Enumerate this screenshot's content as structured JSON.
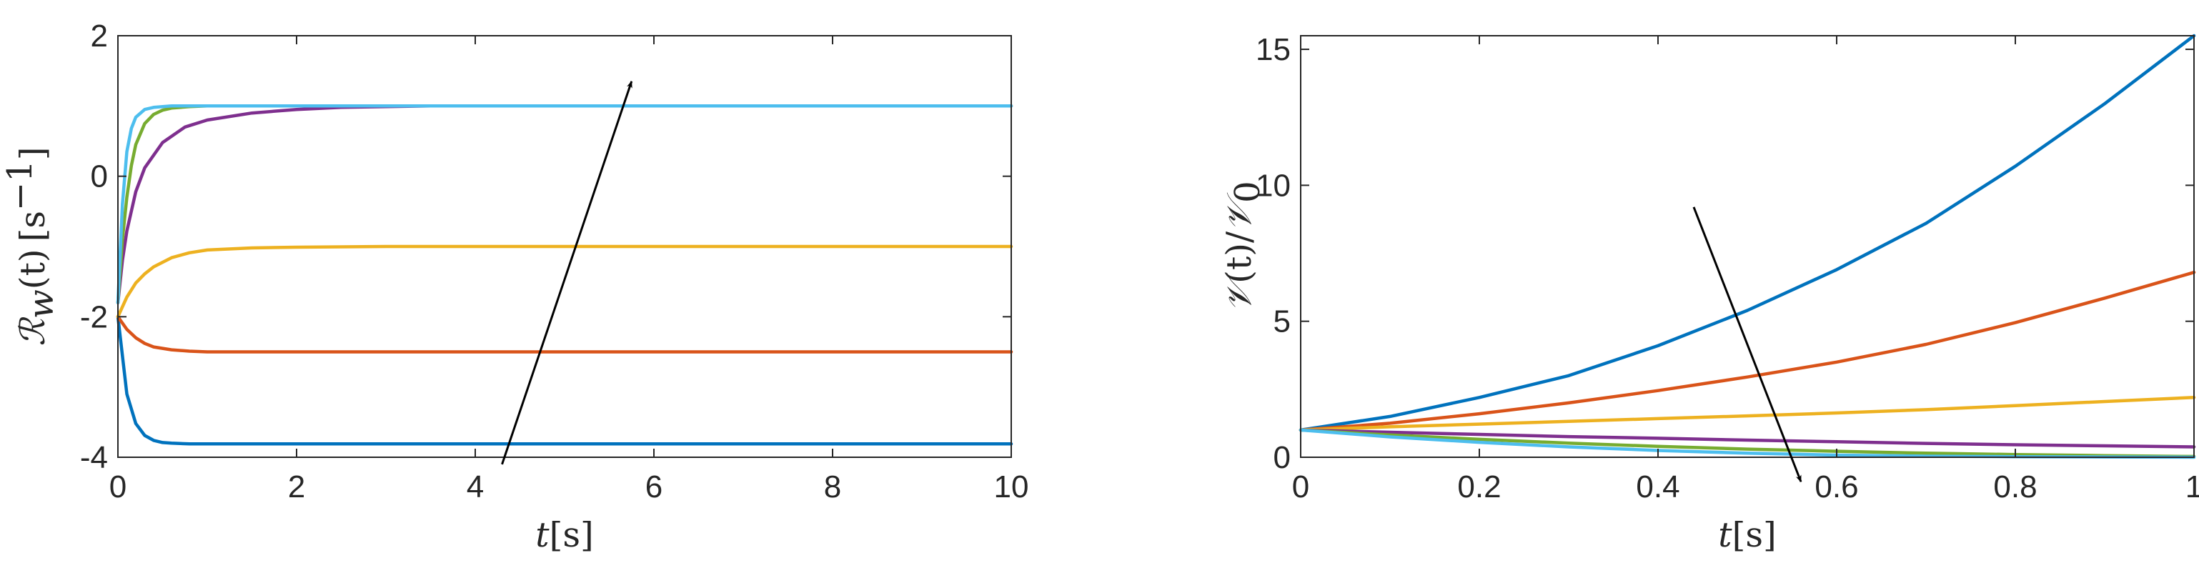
{
  "chart_data": [
    {
      "type": "line",
      "xlabel": {
        "var": "t",
        "unit": "[s]"
      },
      "ylabel": {
        "var": "ℛ",
        "sub": "w",
        "arg": "(t)",
        "unit": "[s",
        "sup": "−1",
        "close": "]"
      },
      "xlim": [
        0,
        10
      ],
      "ylim": [
        -4,
        2
      ],
      "xticks": [
        "0",
        "2",
        "4",
        "6",
        "8",
        "10"
      ],
      "yticks": [
        "-4",
        "-2",
        "0",
        "2"
      ],
      "grid": false,
      "colors": [
        "#0072BD",
        "#D95319",
        "#EDB120",
        "#7E2F8E",
        "#77AC30",
        "#4DBEEE"
      ],
      "series": [
        {
          "x": [
            0,
            0.1,
            0.2,
            0.3,
            0.4,
            0.5,
            0.6,
            0.8,
            1,
            1.5,
            2,
            4,
            10
          ],
          "y": [
            -2,
            -3.1,
            -3.52,
            -3.69,
            -3.76,
            -3.79,
            -3.8,
            -3.81,
            -3.81,
            -3.81,
            -3.81,
            -3.81,
            -3.81
          ]
        },
        {
          "x": [
            0,
            0.1,
            0.2,
            0.3,
            0.4,
            0.6,
            0.8,
            1,
            1.5,
            2,
            4,
            10
          ],
          "y": [
            -2,
            -2.18,
            -2.3,
            -2.38,
            -2.43,
            -2.47,
            -2.49,
            -2.5,
            -2.5,
            -2.5,
            -2.5,
            -2.5
          ]
        },
        {
          "x": [
            0,
            0.1,
            0.2,
            0.3,
            0.4,
            0.6,
            0.8,
            1,
            1.5,
            2,
            3,
            4,
            10
          ],
          "y": [
            -2,
            -1.72,
            -1.52,
            -1.39,
            -1.29,
            -1.16,
            -1.09,
            -1.05,
            -1.02,
            -1.01,
            -1.0,
            -1.0,
            -1.0
          ]
        },
        {
          "x": [
            0,
            0.05,
            0.1,
            0.2,
            0.3,
            0.5,
            0.75,
            1,
            1.5,
            2,
            2.5,
            3,
            3.5,
            10
          ],
          "y": [
            -1.8,
            -1.2,
            -0.78,
            -0.22,
            0.12,
            0.48,
            0.7,
            0.8,
            0.9,
            0.95,
            0.98,
            0.99,
            1.0,
            1.0
          ]
        },
        {
          "x": [
            0,
            0.05,
            0.1,
            0.15,
            0.2,
            0.3,
            0.4,
            0.5,
            0.6,
            0.8,
            1,
            2,
            10
          ],
          "y": [
            -1.8,
            -0.9,
            -0.3,
            0.15,
            0.45,
            0.75,
            0.88,
            0.94,
            0.97,
            0.99,
            1.0,
            1.0,
            1.0
          ]
        },
        {
          "x": [
            0,
            0.05,
            0.1,
            0.15,
            0.2,
            0.3,
            0.4,
            0.5,
            0.6,
            1,
            10
          ],
          "y": [
            -1.8,
            -0.4,
            0.35,
            0.68,
            0.84,
            0.95,
            0.98,
            0.99,
            1.0,
            1.0,
            1.0
          ]
        }
      ],
      "arrow": {
        "from": [
          4.3,
          -4.1
        ],
        "to": [
          5.75,
          1.35
        ]
      }
    },
    {
      "type": "line",
      "xlabel": {
        "var": "t",
        "unit": "[s]"
      },
      "ylabel": {
        "var": "𝒱",
        "arg": "(t)/",
        "var2": "𝒱",
        "sub": "0"
      },
      "xlim": [
        0,
        1
      ],
      "ylim": [
        0,
        15.5
      ],
      "xticks": [
        "0",
        "0.2",
        "0.4",
        "0.6",
        "0.8",
        "1"
      ],
      "yticks": [
        "0",
        "5",
        "10",
        "15"
      ],
      "grid": false,
      "colors": [
        "#0072BD",
        "#D95319",
        "#EDB120",
        "#7E2F8E",
        "#77AC30",
        "#4DBEEE"
      ],
      "series": [
        {
          "x": [
            0,
            0.1,
            0.2,
            0.3,
            0.4,
            0.5,
            0.6,
            0.7,
            0.8,
            0.9,
            1
          ],
          "y": [
            1,
            1.5,
            2.2,
            3.0,
            4.1,
            5.4,
            6.9,
            8.6,
            10.7,
            13.0,
            15.5
          ]
        },
        {
          "x": [
            0,
            0.1,
            0.2,
            0.3,
            0.4,
            0.5,
            0.6,
            0.7,
            0.8,
            0.9,
            1
          ],
          "y": [
            1,
            1.25,
            1.6,
            2.0,
            2.45,
            2.95,
            3.5,
            4.15,
            4.95,
            5.85,
            6.8
          ]
        },
        {
          "x": [
            0,
            0.1,
            0.2,
            0.3,
            0.4,
            0.5,
            0.6,
            0.7,
            0.8,
            0.9,
            1
          ],
          "y": [
            1,
            1.12,
            1.22,
            1.32,
            1.42,
            1.52,
            1.63,
            1.75,
            1.9,
            2.05,
            2.2
          ]
        },
        {
          "x": [
            0,
            0.1,
            0.2,
            0.3,
            0.4,
            0.5,
            0.6,
            0.7,
            0.8,
            0.9,
            1
          ],
          "y": [
            1,
            0.92,
            0.84,
            0.76,
            0.7,
            0.63,
            0.57,
            0.51,
            0.46,
            0.42,
            0.38
          ]
        },
        {
          "x": [
            0,
            0.1,
            0.2,
            0.3,
            0.4,
            0.5,
            0.6,
            0.7,
            0.8,
            0.9,
            1
          ],
          "y": [
            1,
            0.82,
            0.66,
            0.52,
            0.4,
            0.3,
            0.22,
            0.15,
            0.1,
            0.06,
            0.03
          ]
        },
        {
          "x": [
            0,
            0.1,
            0.2,
            0.3,
            0.4,
            0.5,
            0.6,
            0.7,
            0.8,
            0.9,
            1
          ],
          "y": [
            1,
            0.75,
            0.55,
            0.38,
            0.25,
            0.15,
            0.08,
            0.04,
            0.02,
            0.01,
            0.0
          ]
        }
      ],
      "arrow": {
        "from": [
          0.44,
          9.2
        ],
        "to": [
          0.56,
          -0.9
        ]
      }
    }
  ]
}
